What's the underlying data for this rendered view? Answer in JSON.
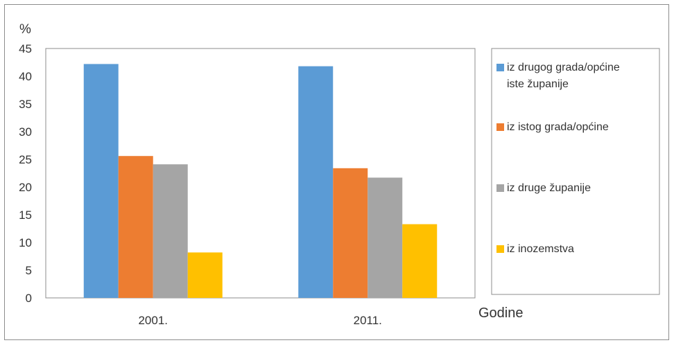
{
  "chart_data": {
    "type": "bar",
    "y_unit_label": "%",
    "xlabel": "Godine",
    "ylabel": "%",
    "categories": [
      "2001.",
      "2011."
    ],
    "ylim": [
      0,
      45
    ],
    "y_ticks": [
      0,
      5,
      10,
      15,
      20,
      25,
      30,
      35,
      40,
      45
    ],
    "grid": false,
    "legend_position": "right",
    "series": [
      {
        "name": "iz drugog grada/općine iste županije",
        "name_lines": [
          "iz drugog grada/općine",
          "iste županije"
        ],
        "color": "#5b9bd5",
        "values": [
          42.2,
          41.8
        ]
      },
      {
        "name": "iz istog grada/općine",
        "name_lines": [
          "iz istog grada/općine"
        ],
        "color": "#ed7d31",
        "values": [
          25.6,
          23.4
        ]
      },
      {
        "name": "iz druge županije",
        "name_lines": [
          "iz druge županije"
        ],
        "color": "#a5a5a5",
        "values": [
          24.1,
          21.7
        ]
      },
      {
        "name": "iz inozemstva",
        "name_lines": [
          "iz inozemstva"
        ],
        "color": "#ffc000",
        "values": [
          8.2,
          13.3
        ]
      }
    ]
  }
}
